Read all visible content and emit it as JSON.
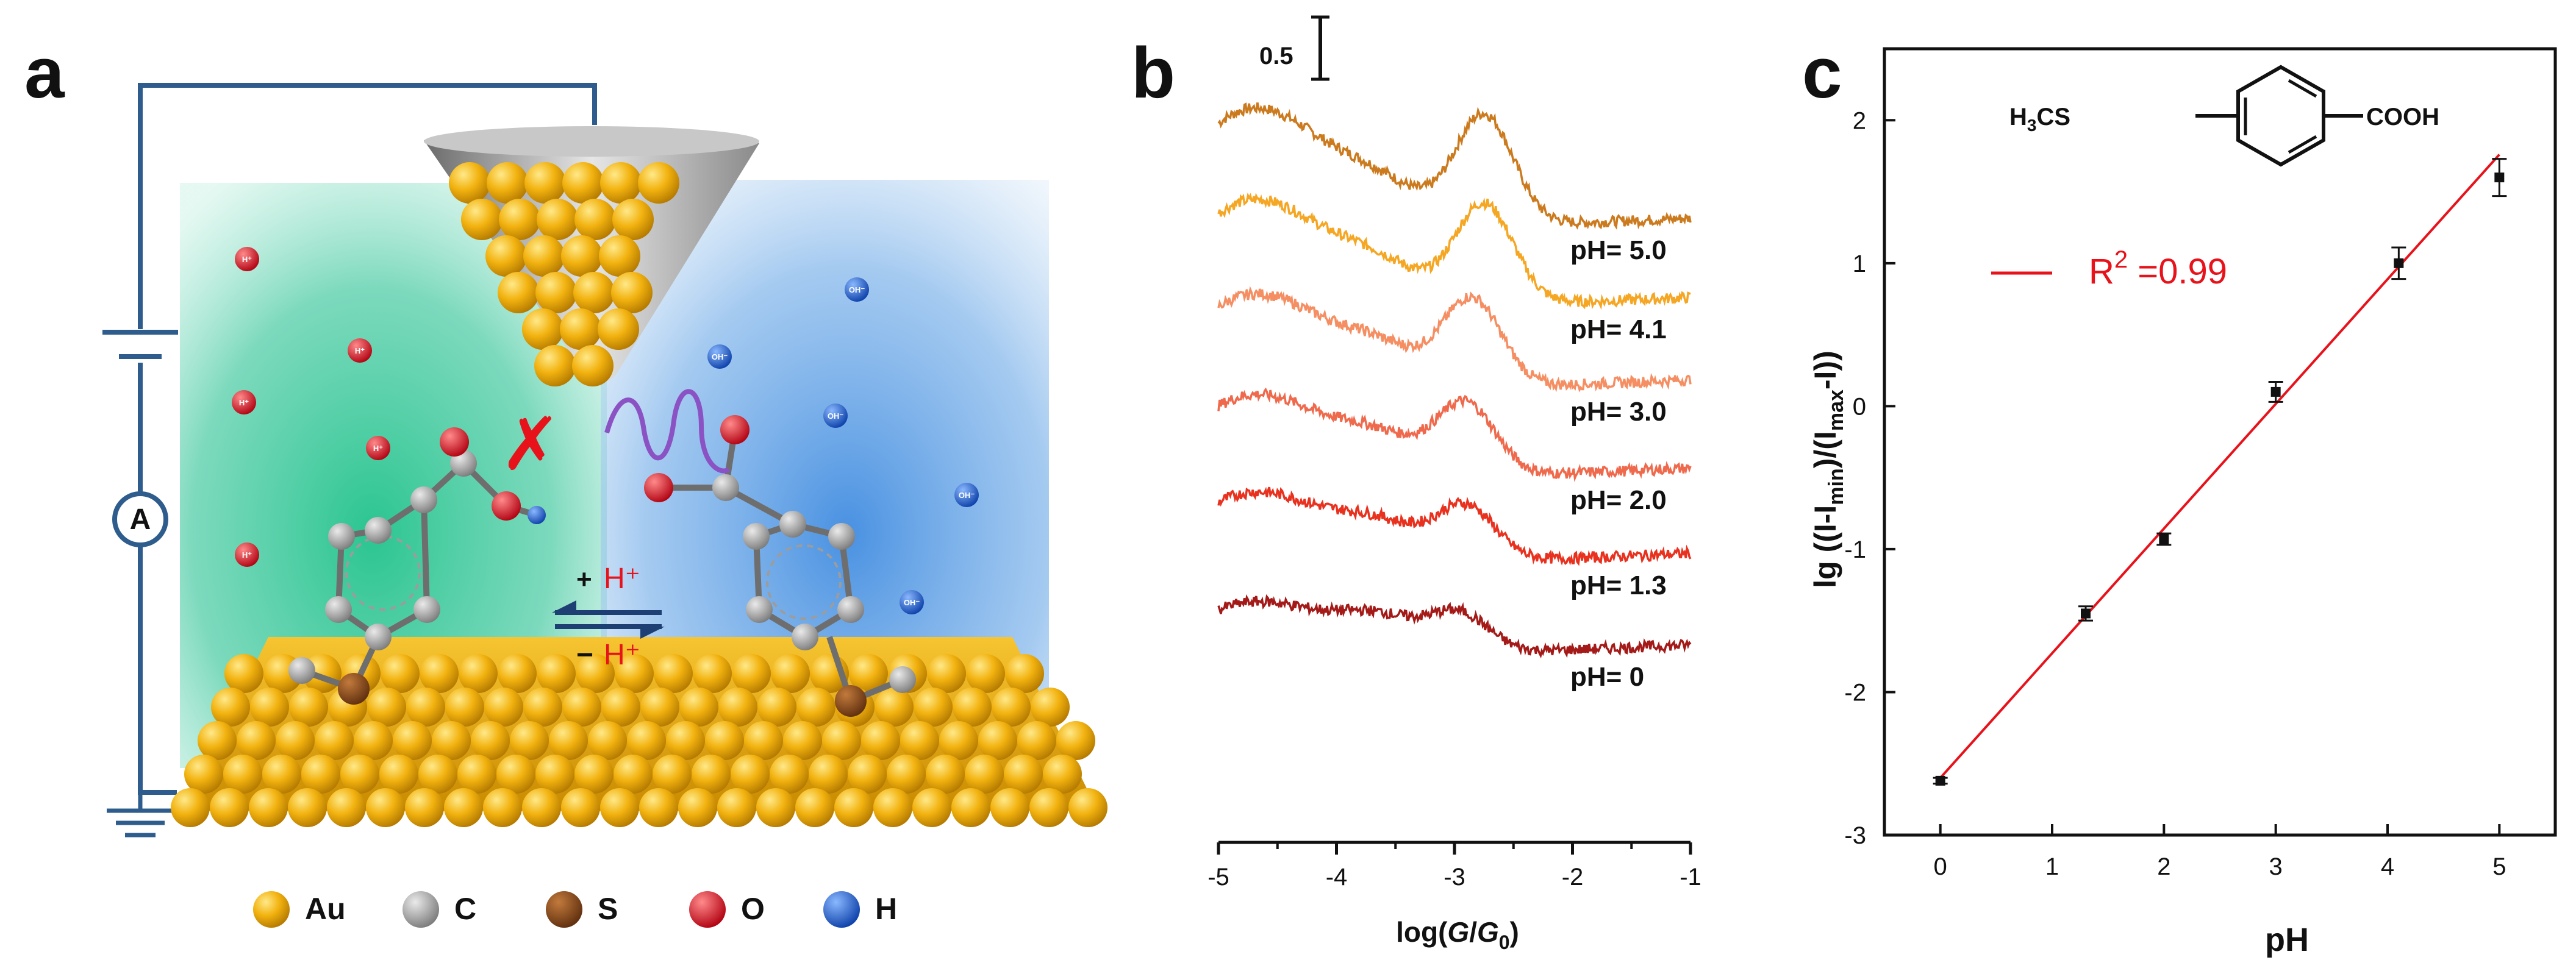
{
  "panels": {
    "a": "a",
    "b": "b",
    "c": "c"
  },
  "panel_a": {
    "ammeter": "A",
    "ion_h": "H⁺",
    "ion_oh": "OH⁻",
    "block_mark": "✗",
    "eq_top_sign": "+",
    "eq_top_ion": "H⁺",
    "eq_bottom_sign": "−",
    "eq_bottom_ion": "H⁺",
    "legend": [
      {
        "label": "Au",
        "color": "#F2B20F"
      },
      {
        "label": "C",
        "color": "#9A9A9A"
      },
      {
        "label": "S",
        "color": "#8B4A1C"
      },
      {
        "label": "O",
        "color": "#E8121B"
      },
      {
        "label": "H",
        "color": "#1560E0"
      }
    ]
  },
  "chart_data": [
    {
      "type": "line",
      "panel": "b",
      "xlabel": "log(G/G0)",
      "xlabel_parts": {
        "pre": "log(",
        "g1": "G",
        "mid": "/",
        "g2": "G",
        "sub": "0",
        "post": ")"
      },
      "xlim": [
        -5,
        -1
      ],
      "xticks": [
        "-5",
        "-4",
        "-3",
        "-2",
        "-1"
      ],
      "scale_bar_label": "0.5",
      "y_axis_shown": false,
      "series": [
        {
          "name": "pH= 5.0",
          "color": "#CC7A1E",
          "peak_x": -2.75,
          "peak_y": 1.65,
          "left_y": 1.05,
          "right_y": 0.95
        },
        {
          "name": "pH= 4.1",
          "color": "#F5A623",
          "peak_x": -2.75,
          "peak_y": 1.5,
          "left_y": 0.95,
          "right_y": 0.95
        },
        {
          "name": "pH= 3.0",
          "color": "#F58E62",
          "peak_x": -2.85,
          "peak_y": 1.3,
          "left_y": 0.85,
          "right_y": 0.9
        },
        {
          "name": "pH= 2.0",
          "color": "#EF6A4D",
          "peak_x": -2.9,
          "peak_y": 1.05,
          "left_y": 0.75,
          "right_y": 0.9
        },
        {
          "name": "pH= 1.3",
          "color": "#E8321F",
          "peak_x": -2.9,
          "peak_y": 0.8,
          "left_y": 0.65,
          "right_y": 0.85
        },
        {
          "name": "pH= 0",
          "color": "#A31A18",
          "peak_x": -2.95,
          "peak_y": 0.55,
          "left_y": 0.5,
          "right_y": 0.8
        }
      ]
    },
    {
      "type": "scatter",
      "panel": "c",
      "xlabel": "pH",
      "ylabel": "lg ((I-Imin)/(Imax-I))",
      "xlim": [
        -0.5,
        5.5
      ],
      "ylim": [
        -3,
        2.5
      ],
      "xticks": [
        0,
        1,
        2,
        3,
        4,
        5
      ],
      "yticks": [
        -3,
        -2,
        -1,
        0,
        1,
        2
      ],
      "points": [
        {
          "x": 0,
          "y": -2.62,
          "err": 0.02
        },
        {
          "x": 1.3,
          "y": -1.45,
          "err": 0.05
        },
        {
          "x": 2.0,
          "y": -0.93,
          "err": 0.04
        },
        {
          "x": 3.0,
          "y": 0.1,
          "err": 0.07
        },
        {
          "x": 4.1,
          "y": 1.0,
          "err": 0.11
        },
        {
          "x": 5.0,
          "y": 1.6,
          "err": 0.13
        }
      ],
      "fit": {
        "color": "#E8121B",
        "x0": 0,
        "y0": -2.6,
        "x1": 5.0,
        "y1": 1.76
      },
      "legend_label": "R",
      "legend_sup": "2",
      "legend_value": " =0.99",
      "molecule": {
        "left": "H",
        "left_sub": "3",
        "left_rest": "CS",
        "right": "COOH"
      }
    }
  ]
}
